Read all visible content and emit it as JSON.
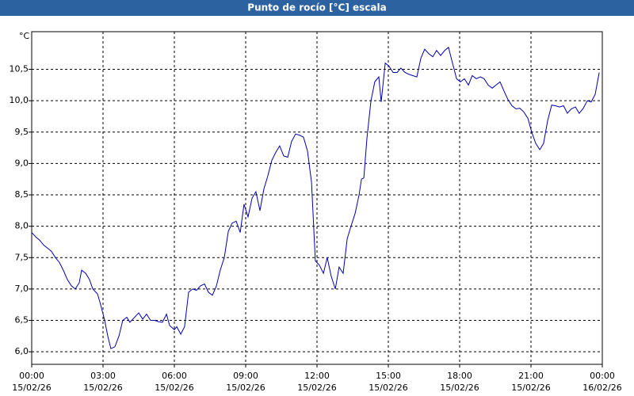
{
  "chart_data": {
    "type": "line",
    "title": "Punto de rocío [°C] escala",
    "y_unit": "°C",
    "x": [
      0,
      0.17,
      0.33,
      0.5,
      0.67,
      0.83,
      1,
      1.17,
      1.33,
      1.5,
      1.67,
      1.83,
      2,
      2.1,
      2.27,
      2.43,
      2.57,
      2.77,
      2.9,
      3.07,
      3.2,
      3.33,
      3.5,
      3.67,
      3.83,
      4,
      4.13,
      4.33,
      4.5,
      4.67,
      4.83,
      5,
      5.17,
      5.33,
      5.5,
      5.67,
      5.8,
      6,
      6.1,
      6.27,
      6.43,
      6.6,
      6.77,
      6.93,
      7.1,
      7.27,
      7.43,
      7.6,
      7.77,
      7.93,
      8.1,
      8.27,
      8.43,
      8.6,
      8.77,
      8.93,
      9.1,
      9.27,
      9.43,
      9.6,
      9.77,
      9.93,
      10.1,
      10.27,
      10.43,
      10.6,
      10.77,
      10.93,
      11.1,
      11.27,
      11.43,
      11.6,
      11.77,
      11.93,
      12.1,
      12.27,
      12.43,
      12.6,
      12.77,
      12.93,
      13.1,
      13.27,
      13.43,
      13.6,
      13.77,
      13.87,
      13.97,
      14.1,
      14.27,
      14.43,
      14.6,
      14.7,
      14.87,
      15.03,
      15.2,
      15.37,
      15.53,
      15.7,
      15.87,
      16.03,
      16.2,
      16.37,
      16.53,
      16.7,
      16.87,
      17.03,
      17.2,
      17.37,
      17.53,
      17.7,
      17.87,
      18.03,
      18.2,
      18.37,
      18.53,
      18.7,
      18.87,
      19.03,
      19.2,
      19.37,
      19.53,
      19.7,
      19.87,
      20.03,
      20.2,
      20.37,
      20.53,
      20.7,
      20.87,
      21.03,
      21.2,
      21.37,
      21.53,
      21.7,
      21.87,
      22.03,
      22.2,
      22.37,
      22.53,
      22.7,
      22.87,
      23.03,
      23.2,
      23.37,
      23.53,
      23.7,
      23.87
    ],
    "series": [
      {
        "color": "#0000b4",
        "values": [
          7.9,
          7.83,
          7.78,
          7.7,
          7.65,
          7.6,
          7.5,
          7.42,
          7.3,
          7.15,
          7.05,
          7.0,
          7.1,
          7.3,
          7.25,
          7.15,
          7.0,
          6.92,
          6.75,
          6.5,
          6.25,
          6.05,
          6.08,
          6.25,
          6.5,
          6.55,
          6.47,
          6.55,
          6.62,
          6.52,
          6.6,
          6.5,
          6.5,
          6.48,
          6.47,
          6.6,
          6.42,
          6.35,
          6.4,
          6.28,
          6.4,
          6.95,
          7.0,
          6.98,
          7.05,
          7.08,
          6.95,
          6.9,
          7.05,
          7.3,
          7.5,
          7.92,
          8.05,
          8.08,
          7.9,
          8.35,
          8.15,
          8.45,
          8.55,
          8.25,
          8.6,
          8.8,
          9.05,
          9.18,
          9.28,
          9.12,
          9.1,
          9.35,
          9.47,
          9.45,
          9.42,
          9.2,
          8.7,
          7.45,
          7.38,
          7.25,
          7.5,
          7.2,
          7.0,
          7.35,
          7.25,
          7.8,
          8.0,
          8.2,
          8.5,
          8.75,
          8.77,
          9.4,
          10.0,
          10.3,
          10.38,
          9.98,
          10.6,
          10.55,
          10.45,
          10.45,
          10.52,
          10.45,
          10.42,
          10.4,
          10.38,
          10.68,
          10.82,
          10.75,
          10.7,
          10.8,
          10.72,
          10.8,
          10.85,
          10.6,
          10.35,
          10.3,
          10.35,
          10.25,
          10.4,
          10.35,
          10.38,
          10.35,
          10.25,
          10.2,
          10.25,
          10.3,
          10.15,
          10.02,
          9.92,
          9.87,
          9.88,
          9.82,
          9.72,
          9.5,
          9.32,
          9.22,
          9.32,
          9.68,
          9.93,
          9.92,
          9.9,
          9.92,
          9.8,
          9.87,
          9.9,
          9.8,
          9.88,
          10.0,
          9.98,
          10.1,
          10.45
        ]
      }
    ],
    "xlim": [
      0,
      24
    ],
    "xticks": [
      {
        "value": 0,
        "label": "00:00"
      },
      {
        "value": 3,
        "label": "03:00"
      },
      {
        "value": 6,
        "label": "06:00"
      },
      {
        "value": 9,
        "label": "09:00"
      },
      {
        "value": 12,
        "label": "12:00"
      },
      {
        "value": 15,
        "label": "15:00"
      },
      {
        "value": 18,
        "label": "18:00"
      },
      {
        "value": 21,
        "label": "21:00"
      },
      {
        "value": 24,
        "label": "00:00"
      }
    ],
    "xtick_dates": [
      "15/02/26",
      "15/02/26",
      "15/02/26",
      "15/02/26",
      "15/02/26",
      "15/02/26",
      "15/02/26",
      "15/02/26",
      "16/02/26"
    ],
    "ylim": [
      5.8,
      11.1
    ],
    "yticks": [
      {
        "value": 6,
        "label": "6,0"
      },
      {
        "value": 6.5,
        "label": "6,5"
      },
      {
        "value": 7,
        "label": "7,0"
      },
      {
        "value": 7.5,
        "label": "7,5"
      },
      {
        "value": 8,
        "label": "8,0"
      },
      {
        "value": 8.5,
        "label": "8,5"
      },
      {
        "value": 9,
        "label": "9,0"
      },
      {
        "value": 9.5,
        "label": "9,5"
      },
      {
        "value": 10,
        "label": "10,0"
      },
      {
        "value": 10.5,
        "label": "10,5"
      }
    ],
    "grid": true
  }
}
